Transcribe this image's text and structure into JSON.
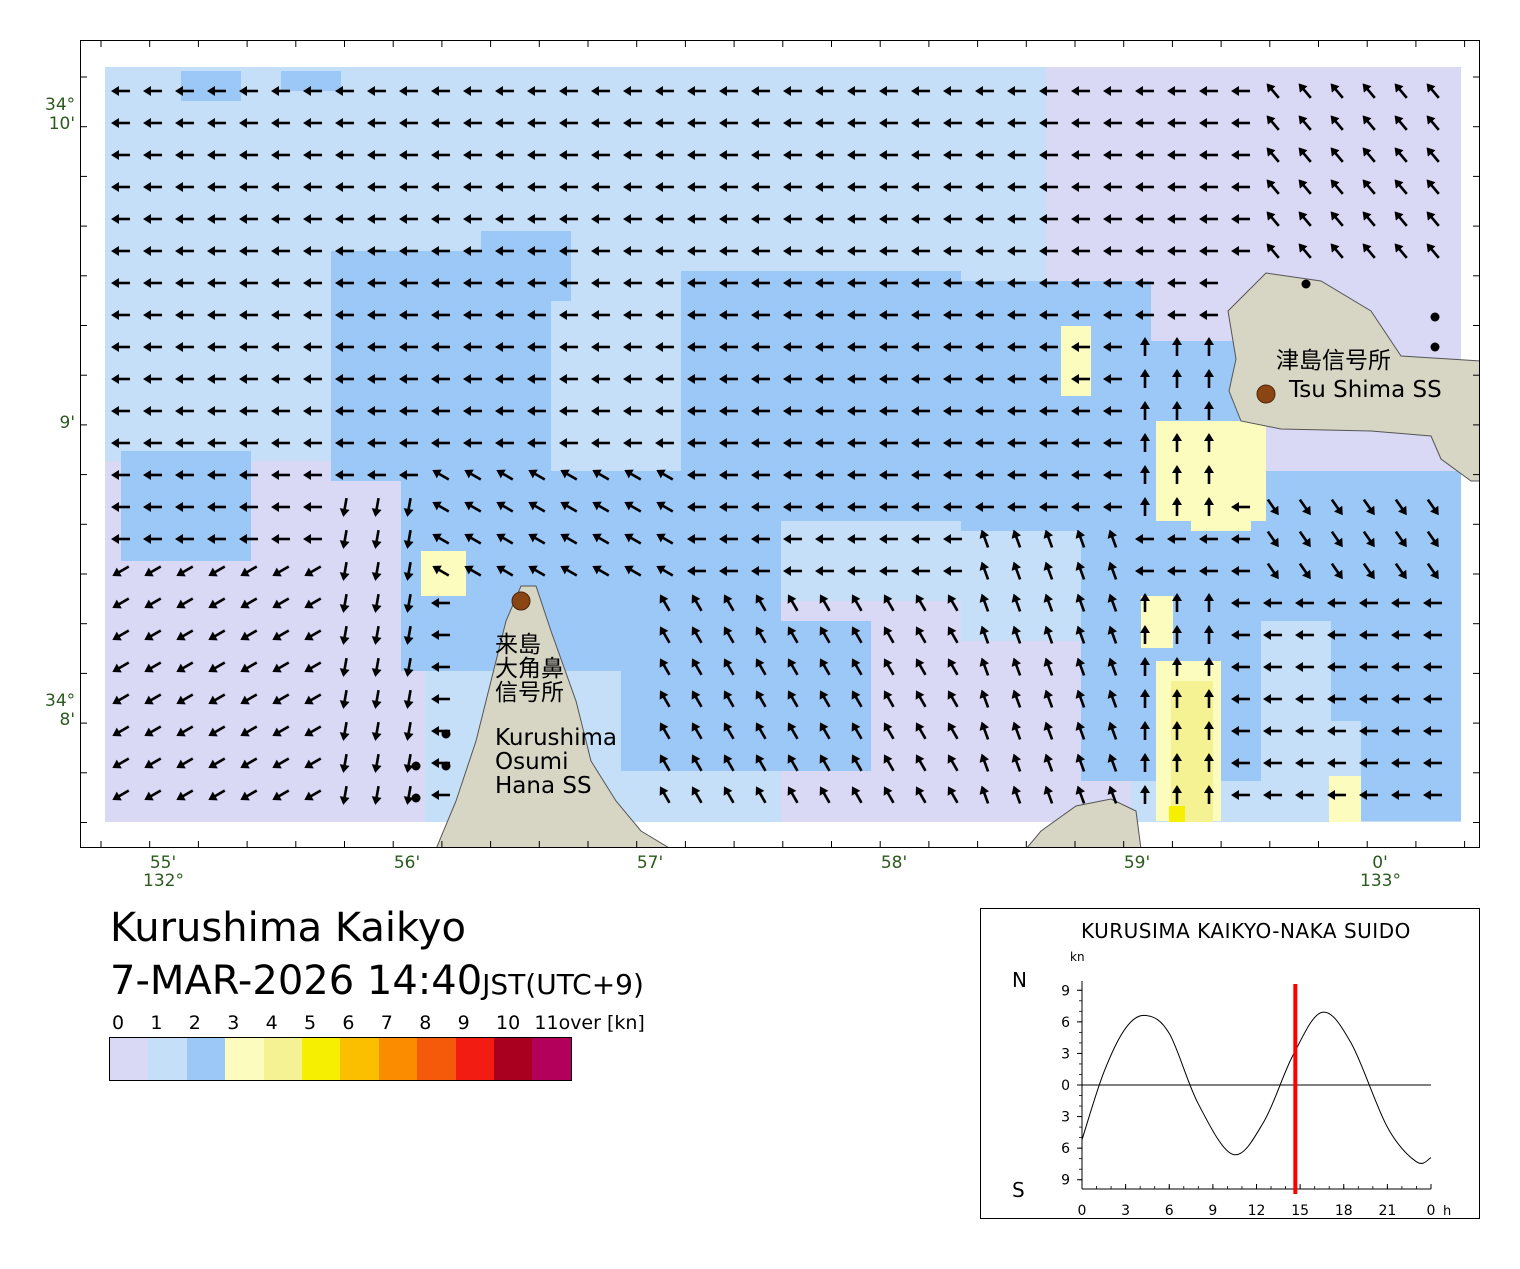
{
  "map": {
    "title": "Kurushima Kaikyo",
    "datetime": "7-MAR-2026 14:40",
    "timezone": "JST(UTC+9)",
    "colors": {
      "land": "#d7d5c4",
      "speed_0_1": "#d9d8f5",
      "speed_1_2": "#c6dff9",
      "speed_2_3": "#9bc8f7",
      "speed_3_4": "#fcfcbf",
      "speed_4_5": "#f5f294",
      "speed_5_6": "#f7ef02",
      "station_marker": "#8b4513",
      "axis_label": "#2a5a1e"
    },
    "lon_labels": [
      {
        "minute": "55'",
        "degree": "132°"
      },
      {
        "minute": "56'"
      },
      {
        "minute": "57'"
      },
      {
        "minute": "58'"
      },
      {
        "minute": "59'"
      },
      {
        "minute": "0'",
        "degree": "133°"
      }
    ],
    "lat_labels": [
      {
        "minute": "10'",
        "degree": "34°"
      },
      {
        "minute": "9'"
      },
      {
        "minute": "8'",
        "degree": "34°"
      }
    ],
    "stations": [
      {
        "name_ja": "津島信号所",
        "name_en": "Tsu Shima SS"
      },
      {
        "name_ja": "来島\n大角鼻\n信号所",
        "name_en": "Kurushima\nOsumi\nHana SS"
      }
    ]
  },
  "legend": {
    "labels": [
      "0",
      "1",
      "2",
      "3",
      "4",
      "5",
      "6",
      "7",
      "8",
      "9",
      "10",
      "11over [kn]"
    ],
    "colors": [
      "#d9d8f5",
      "#c6dff9",
      "#9bc8f7",
      "#fcfcbf",
      "#f5f294",
      "#f7ef02",
      "#fbbf00",
      "#fb8c00",
      "#f55a0a",
      "#f21c12",
      "#a8001e",
      "#b3005a"
    ]
  },
  "tide_panel": {
    "title": "KURUSIMA KAIKYO-NAKA SUIDO",
    "unit": "kn",
    "north_label": "N",
    "south_label": "S",
    "y_ticks": [
      "9",
      "6",
      "3",
      "0",
      "3",
      "6",
      "9"
    ],
    "x_ticks": [
      "0",
      "3",
      "6",
      "9",
      "12",
      "15",
      "18",
      "21",
      "0"
    ],
    "x_unit": "h",
    "current_time_h": 14.67,
    "marker_color": "#ff0000",
    "series": [
      {
        "hour": 0,
        "kn": -5.2
      },
      {
        "hour": 1.5,
        "kn": 1.2
      },
      {
        "hour": 3,
        "kn": 5.4
      },
      {
        "hour": 4.4,
        "kn": 6.6
      },
      {
        "hour": 6,
        "kn": 4.9
      },
      {
        "hour": 8,
        "kn": -1.8
      },
      {
        "hour": 10.4,
        "kn": -6.6
      },
      {
        "hour": 12.5,
        "kn": -3.5
      },
      {
        "hour": 14.5,
        "kn": 2.8
      },
      {
        "hour": 16.5,
        "kn": 6.9
      },
      {
        "hour": 18.5,
        "kn": 4.0
      },
      {
        "hour": 21,
        "kn": -4.0
      },
      {
        "hour": 23,
        "kn": -7.3
      },
      {
        "hour": 24,
        "kn": -6.9
      }
    ]
  }
}
